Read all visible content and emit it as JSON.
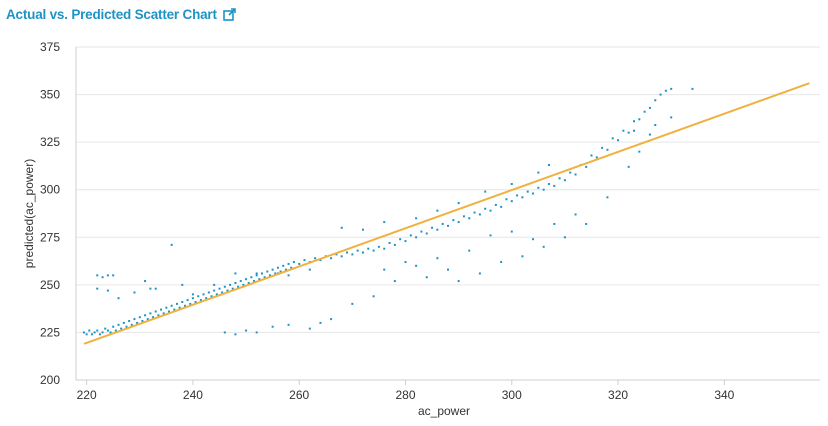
{
  "panel": {
    "title": "Actual vs. Predicted Scatter Chart",
    "link_icon": "external-link-icon"
  },
  "colors": {
    "points": "#1e93c6",
    "fit_line": "#f1b13f",
    "grid": "#e6e6e6",
    "axis": "#cfcfcf",
    "title": "#1e93c6"
  },
  "chart_data": {
    "type": "scatter",
    "title": "",
    "xlabel": "ac_power",
    "ylabel": "predicted(ac_power)",
    "xlim": [
      218,
      358
    ],
    "ylim": [
      200,
      375
    ],
    "x_ticks": [
      220,
      240,
      260,
      280,
      300,
      320,
      340
    ],
    "y_ticks": [
      200,
      225,
      250,
      275,
      300,
      325,
      350,
      375
    ],
    "grid": "horizontal",
    "series": [
      {
        "type": "scatter",
        "points": [
          [
            219.5,
            225
          ],
          [
            220,
            224
          ],
          [
            220.5,
            226
          ],
          [
            221,
            224
          ],
          [
            221.5,
            225
          ],
          [
            222,
            226
          ],
          [
            222.5,
            224
          ],
          [
            223,
            225
          ],
          [
            223.5,
            227
          ],
          [
            224,
            226
          ],
          [
            224.5,
            225
          ],
          [
            225,
            228
          ],
          [
            225.5,
            226
          ],
          [
            226,
            229
          ],
          [
            226.5,
            227
          ],
          [
            227,
            230
          ],
          [
            227.5,
            228
          ],
          [
            228,
            231
          ],
          [
            228.5,
            229
          ],
          [
            229,
            232
          ],
          [
            229.5,
            230
          ],
          [
            230,
            233
          ],
          [
            230.5,
            231
          ],
          [
            231,
            234
          ],
          [
            231.5,
            232
          ],
          [
            232,
            235
          ],
          [
            232.5,
            233
          ],
          [
            233,
            236
          ],
          [
            233.5,
            234
          ],
          [
            234,
            237
          ],
          [
            234.5,
            235
          ],
          [
            235,
            238
          ],
          [
            235.5,
            236
          ],
          [
            236,
            239
          ],
          [
            236.5,
            237
          ],
          [
            237,
            240
          ],
          [
            237.5,
            238
          ],
          [
            238,
            241
          ],
          [
            238.5,
            239
          ],
          [
            239,
            242
          ],
          [
            239.5,
            240
          ],
          [
            240,
            243
          ],
          [
            240.5,
            241
          ],
          [
            241,
            244
          ],
          [
            241.5,
            242
          ],
          [
            242,
            245
          ],
          [
            242.5,
            243
          ],
          [
            243,
            246
          ],
          [
            243.5,
            244
          ],
          [
            244,
            247
          ],
          [
            244.5,
            245
          ],
          [
            245,
            248
          ],
          [
            245.5,
            246
          ],
          [
            246,
            249
          ],
          [
            246.5,
            247
          ],
          [
            247,
            250
          ],
          [
            247.5,
            248
          ],
          [
            248,
            251
          ],
          [
            248.5,
            249
          ],
          [
            249,
            252
          ],
          [
            249.5,
            250
          ],
          [
            250,
            253
          ],
          [
            250.5,
            251
          ],
          [
            251,
            254
          ],
          [
            251.5,
            252
          ],
          [
            252,
            255
          ],
          [
            252.5,
            253
          ],
          [
            253,
            256
          ],
          [
            253.5,
            254
          ],
          [
            254,
            257
          ],
          [
            254.5,
            255
          ],
          [
            255,
            258
          ],
          [
            255.5,
            256
          ],
          [
            256,
            259
          ],
          [
            256.5,
            257
          ],
          [
            257,
            260
          ],
          [
            257.5,
            258
          ],
          [
            258,
            261
          ],
          [
            258.5,
            259
          ],
          [
            259,
            262
          ],
          [
            260,
            261
          ],
          [
            261,
            263
          ],
          [
            262,
            262
          ],
          [
            263,
            264
          ],
          [
            264,
            263
          ],
          [
            265,
            265
          ],
          [
            266,
            264
          ],
          [
            267,
            266
          ],
          [
            268,
            265
          ],
          [
            269,
            267
          ],
          [
            270,
            266
          ],
          [
            271,
            268
          ],
          [
            272,
            267
          ],
          [
            273,
            269
          ],
          [
            274,
            268
          ],
          [
            275,
            270
          ],
          [
            276,
            269
          ],
          [
            277,
            272
          ],
          [
            278,
            271
          ],
          [
            279,
            274
          ],
          [
            280,
            273
          ],
          [
            281,
            276
          ],
          [
            282,
            275
          ],
          [
            283,
            278
          ],
          [
            284,
            277
          ],
          [
            285,
            280
          ],
          [
            286,
            279
          ],
          [
            287,
            282
          ],
          [
            288,
            281
          ],
          [
            289,
            284
          ],
          [
            290,
            283
          ],
          [
            291,
            286
          ],
          [
            292,
            285
          ],
          [
            293,
            288
          ],
          [
            294,
            287
          ],
          [
            295,
            290
          ],
          [
            296,
            289
          ],
          [
            297,
            292
          ],
          [
            298,
            291
          ],
          [
            299,
            295
          ],
          [
            300,
            294
          ],
          [
            301,
            297
          ],
          [
            302,
            296
          ],
          [
            303,
            299
          ],
          [
            304,
            298
          ],
          [
            305,
            301
          ],
          [
            306,
            300
          ],
          [
            307,
            303
          ],
          [
            308,
            302
          ],
          [
            309,
            306
          ],
          [
            310,
            305
          ],
          [
            311,
            309
          ],
          [
            312,
            308
          ],
          [
            313,
            313
          ],
          [
            314,
            312
          ],
          [
            315,
            318
          ],
          [
            316,
            317
          ],
          [
            317,
            322
          ],
          [
            318,
            321
          ],
          [
            319,
            327
          ],
          [
            320,
            326
          ],
          [
            321,
            331
          ],
          [
            322,
            330
          ],
          [
            323,
            336
          ],
          [
            324,
            337
          ],
          [
            325,
            341
          ],
          [
            326,
            343
          ],
          [
            327,
            347
          ],
          [
            328,
            350
          ],
          [
            330,
            353
          ],
          [
            222,
            255
          ],
          [
            223,
            254
          ],
          [
            224,
            255
          ],
          [
            225,
            255
          ],
          [
            222,
            248
          ],
          [
            224,
            247
          ],
          [
            226,
            243
          ],
          [
            229,
            246
          ],
          [
            231,
            252
          ],
          [
            232,
            248
          ],
          [
            236,
            271
          ],
          [
            233,
            248
          ],
          [
            238,
            250
          ],
          [
            240,
            245
          ],
          [
            244,
            250
          ],
          [
            248,
            256
          ],
          [
            252,
            256
          ],
          [
            256,
            256
          ],
          [
            258,
            255
          ],
          [
            262,
            258
          ],
          [
            268,
            280
          ],
          [
            272,
            279
          ],
          [
            276,
            283
          ],
          [
            282,
            285
          ],
          [
            286,
            289
          ],
          [
            290,
            293
          ],
          [
            295,
            299
          ],
          [
            300,
            303
          ],
          [
            305,
            309
          ],
          [
            307,
            313
          ],
          [
            246,
            225
          ],
          [
            248,
            224
          ],
          [
            250,
            226
          ],
          [
            252,
            225
          ],
          [
            255,
            228
          ],
          [
            258,
            229
          ],
          [
            262,
            227
          ],
          [
            264,
            230
          ],
          [
            266,
            232
          ],
          [
            270,
            240
          ],
          [
            274,
            244
          ],
          [
            278,
            252
          ],
          [
            282,
            260
          ],
          [
            286,
            264
          ],
          [
            292,
            268
          ],
          [
            296,
            276
          ],
          [
            300,
            278
          ],
          [
            304,
            274
          ],
          [
            308,
            282
          ],
          [
            312,
            287
          ],
          [
            276,
            258
          ],
          [
            280,
            262
          ],
          [
            284,
            254
          ],
          [
            288,
            258
          ],
          [
            290,
            252
          ],
          [
            294,
            256
          ],
          [
            298,
            262
          ],
          [
            302,
            265
          ],
          [
            306,
            270
          ],
          [
            310,
            275
          ],
          [
            314,
            282
          ],
          [
            318,
            296
          ],
          [
            322,
            312
          ],
          [
            324,
            320
          ],
          [
            326,
            329
          ],
          [
            329,
            352
          ],
          [
            334,
            353
          ],
          [
            330,
            338
          ],
          [
            327,
            334
          ],
          [
            323,
            331
          ]
        ]
      },
      {
        "type": "line",
        "points": [
          [
            219.5,
            219
          ],
          [
            356,
            356
          ]
        ]
      }
    ]
  }
}
